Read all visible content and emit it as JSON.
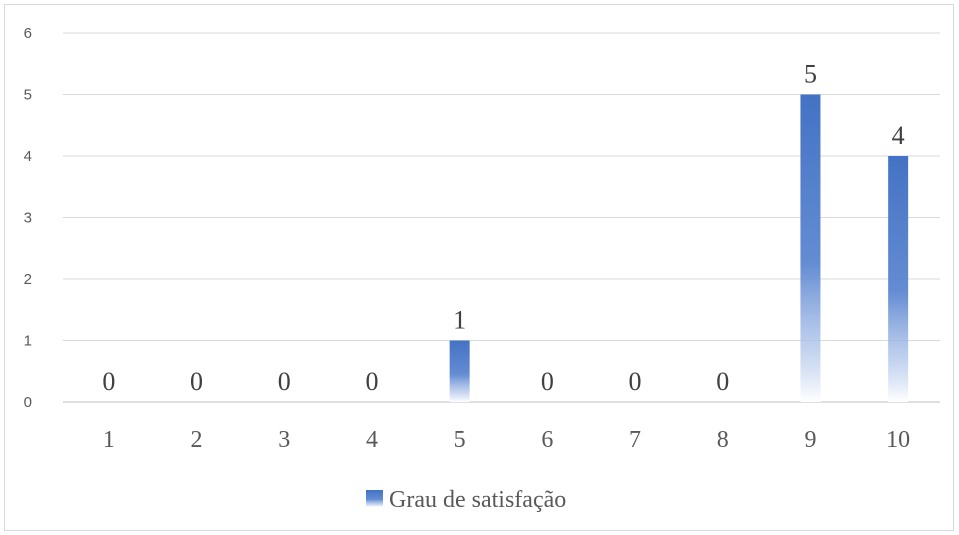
{
  "chart_data": {
    "type": "bar",
    "categories": [
      "1",
      "2",
      "3",
      "4",
      "5",
      "6",
      "7",
      "8",
      "9",
      "10"
    ],
    "series": [
      {
        "name": "Grau de satisfação",
        "values": [
          0,
          0,
          0,
          0,
          1,
          0,
          0,
          0,
          5,
          4
        ],
        "color": "#4472c4"
      }
    ],
    "yticks": [
      "0",
      "1",
      "2",
      "3",
      "4",
      "5",
      "6"
    ],
    "ylim": [
      0,
      6
    ],
    "grid": true,
    "legend": "bottom",
    "data_labels": true
  }
}
